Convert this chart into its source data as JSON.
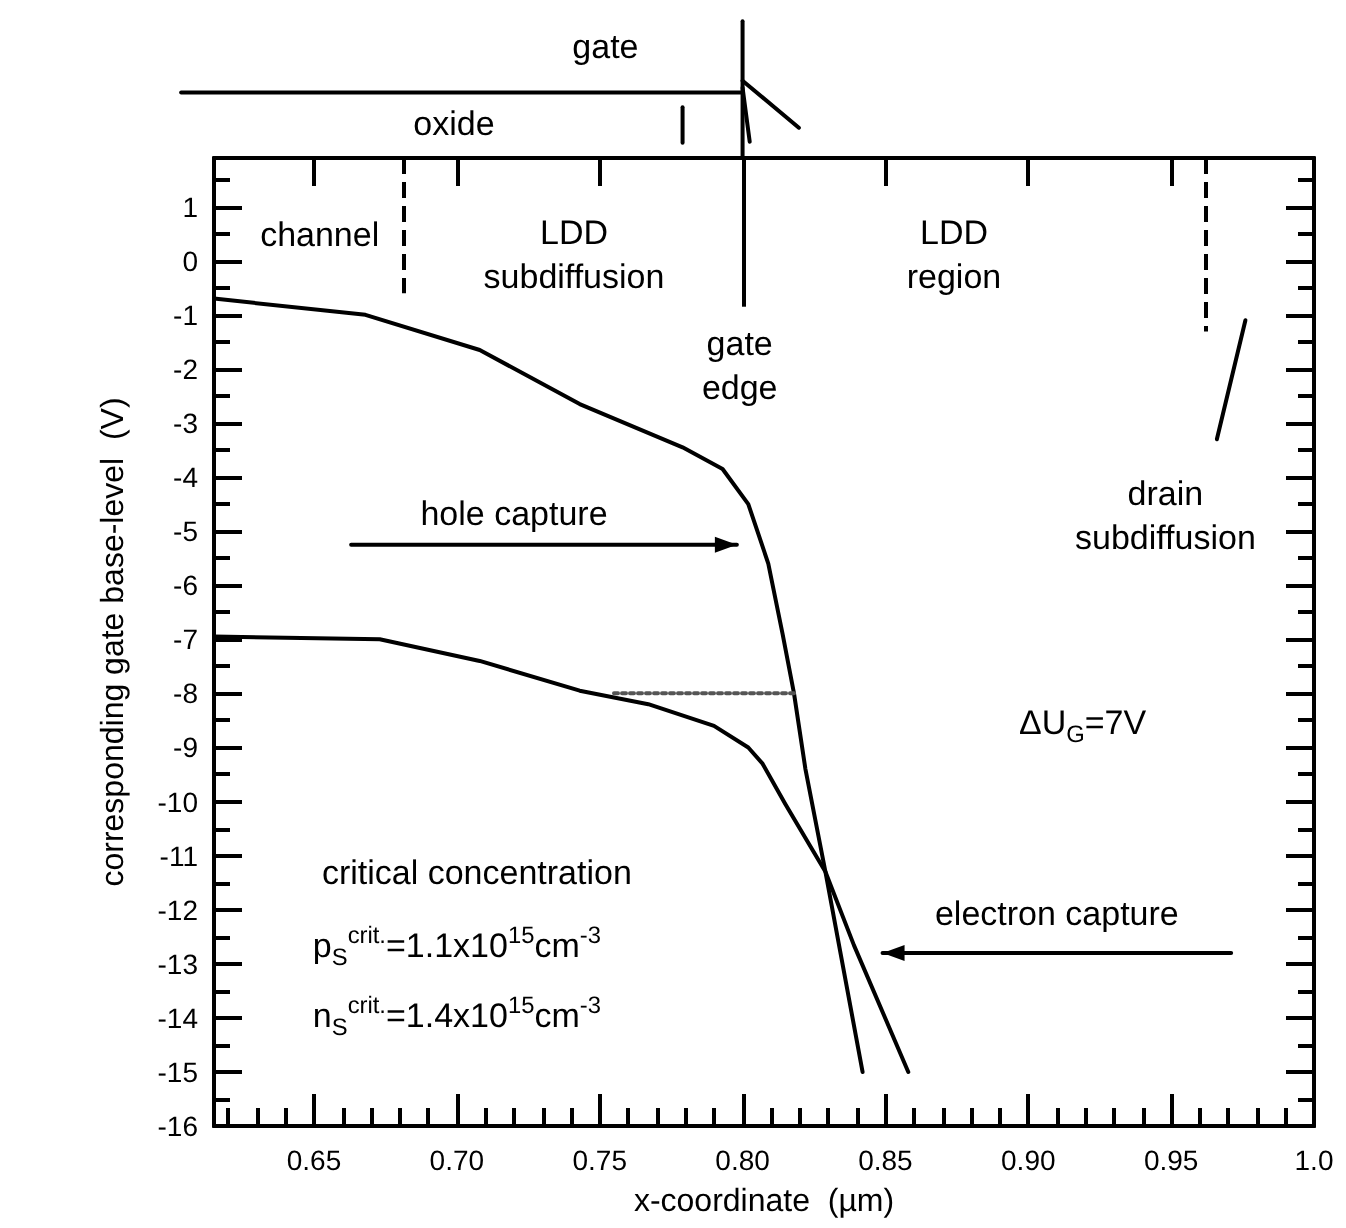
{
  "chart_data": {
    "type": "line",
    "xlabel": "x-coordinate  (µm)",
    "ylabel": "corresponding gate base-level  (V)",
    "xlim": [
      0.615,
      1.0
    ],
    "ylim": [
      -16,
      1.9
    ],
    "xticks": [
      {
        "value": 0.65,
        "label": "0.65"
      },
      {
        "value": 0.7,
        "label": "0.70"
      },
      {
        "value": 0.75,
        "label": "0.75"
      },
      {
        "value": 0.8,
        "label": "0.80"
      },
      {
        "value": 0.85,
        "label": "0.85"
      },
      {
        "value": 0.9,
        "label": "0.90"
      },
      {
        "value": 0.95,
        "label": "0.95"
      },
      {
        "value": 1.0,
        "label": "1.0"
      }
    ],
    "yticks": [
      -16,
      -15,
      -14,
      -13,
      -12,
      -11,
      -10,
      -9,
      -8,
      -7,
      -6,
      -5,
      -4,
      -3,
      -2,
      -1,
      0,
      1
    ],
    "grid": false,
    "marker": "none",
    "series": [
      {
        "color": "#000000",
        "x": [
          0.615,
          0.668,
          0.708,
          0.743,
          0.779,
          0.793,
          0.802,
          0.809,
          0.814,
          0.818,
          0.822,
          0.829,
          0.842
        ],
        "values": [
          -0.7,
          -1.0,
          -1.65,
          -2.65,
          -3.45,
          -3.85,
          -4.5,
          -5.6,
          -6.9,
          -8.0,
          -9.4,
          -11.3,
          -15.0
        ]
      },
      {
        "color": "#000000",
        "x": [
          0.615,
          0.673,
          0.708,
          0.743,
          0.767,
          0.79,
          0.802,
          0.807,
          0.815,
          0.829,
          0.839,
          0.858
        ],
        "values": [
          -6.95,
          -7.0,
          -7.4,
          -7.95,
          -8.2,
          -8.6,
          -9.0,
          -9.3,
          -10.05,
          -11.3,
          -12.66,
          -15.0
        ]
      },
      {
        "color": "#555555",
        "line_style": "dotted",
        "x": [
          0.755,
          0.819
        ],
        "values": [
          -8.0,
          -8.0
        ]
      }
    ],
    "ref_lines": [
      {
        "axis": "x",
        "value": 0.681,
        "line_style": "dashed",
        "color": "#000000"
      },
      {
        "axis": "x",
        "value": 0.8,
        "line_style": "solid",
        "color": "#000000"
      },
      {
        "axis": "x",
        "value": 0.962,
        "line_style": "dashed",
        "color": "#000000"
      }
    ],
    "annotations": [
      "gate",
      "oxide",
      "channel",
      "LDD subdiffusion",
      "gate edge",
      "LDD region",
      "drain subdiffusion",
      "hole capture",
      "ΔU$_{G}$=7V",
      "critical concentration",
      "p$_{S}$$^{crit.}$=1.1x10$^{15}$cm$^{-3}$",
      "n$_{S}$$^{crit.}$=1.4x10$^{15}$cm$^{-3}$",
      "electron capture"
    ]
  }
}
